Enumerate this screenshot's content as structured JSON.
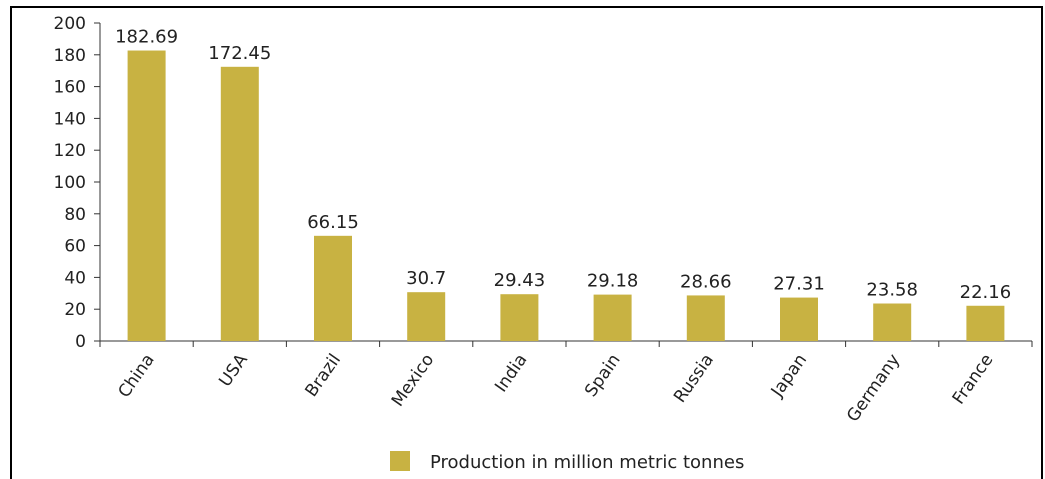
{
  "chart_data": {
    "type": "bar",
    "categories": [
      "China",
      "USA",
      "Brazil",
      "Mexico",
      "India",
      "Spain",
      "Russia",
      "Japan",
      "Germany",
      "France"
    ],
    "values": [
      182.69,
      172.45,
      66.15,
      30.7,
      29.43,
      29.18,
      28.66,
      27.31,
      23.58,
      22.16
    ],
    "data_labels": [
      "182.69",
      "172.45",
      "66.15",
      "30.7",
      "29.43",
      "29.18",
      "28.66",
      "27.31",
      "23.58",
      "22.16"
    ],
    "y_ticks": [
      "0",
      "20",
      "40",
      "60",
      "80",
      "100",
      "120",
      "140",
      "160",
      "180",
      "200"
    ],
    "ylim": [
      0,
      200
    ],
    "series": [
      {
        "name": "Production in million metric tonnes",
        "values": [
          182.69,
          172.45,
          66.15,
          30.7,
          29.43,
          29.18,
          28.66,
          27.31,
          23.58,
          22.16
        ]
      }
    ],
    "legend": {
      "label": "Production in million metric tonnes",
      "placement": "bottom"
    },
    "grid": false,
    "bar_color": "#c8b242"
  }
}
